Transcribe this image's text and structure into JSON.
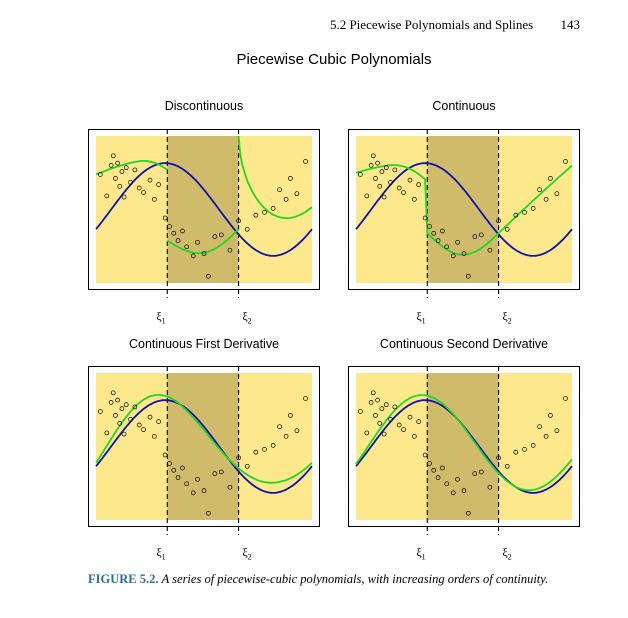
{
  "header": {
    "section": "5.2 Piecewise Polynomials and Splines",
    "page_number": "143"
  },
  "figure": {
    "title": "Piecewise Cubic Polynomials",
    "caption_label": "FIGURE 5.2.",
    "caption_text": "A series of piecewise-cubic polynomials, with increasing orders of continuity."
  },
  "colors": {
    "outer_region": "#fde98c",
    "middle_region": "#cfbb6a",
    "true_curve": "#1010b0",
    "fit_curve": "#22d622",
    "points": "#000000"
  },
  "chart_data": [
    {
      "type": "scatter",
      "title": "Discontinuous",
      "knots": [
        0.33,
        0.66
      ],
      "knot_labels": [
        "ξ1",
        "ξ2"
      ],
      "xlim": [
        0,
        1
      ],
      "ylim": [
        -1.3,
        1.3
      ],
      "fit_kind": "discontinuous"
    },
    {
      "type": "scatter",
      "title": "Continuous",
      "knots": [
        0.33,
        0.66
      ],
      "knot_labels": [
        "ξ1",
        "ξ2"
      ],
      "xlim": [
        0,
        1
      ],
      "ylim": [
        -1.3,
        1.3
      ],
      "fit_kind": "continuous"
    },
    {
      "type": "scatter",
      "title": "Continuous First Derivative",
      "knots": [
        0.33,
        0.66
      ],
      "knot_labels": [
        "ξ1",
        "ξ2"
      ],
      "xlim": [
        0,
        1
      ],
      "ylim": [
        -1.3,
        1.3
      ],
      "fit_kind": "first_derivative"
    },
    {
      "type": "scatter",
      "title": "Continuous Second Derivative",
      "knots": [
        0.33,
        0.66
      ],
      "knot_labels": [
        "ξ1",
        "ξ2"
      ],
      "xlim": [
        0,
        1
      ],
      "ylim": [
        -1.3,
        1.3
      ],
      "fit_kind": "second_derivative"
    }
  ],
  "points": {
    "x": [
      0.02,
      0.05,
      0.07,
      0.08,
      0.09,
      0.1,
      0.11,
      0.12,
      0.13,
      0.14,
      0.16,
      0.18,
      0.2,
      0.22,
      0.25,
      0.27,
      0.29,
      0.32,
      0.34,
      0.36,
      0.38,
      0.4,
      0.42,
      0.45,
      0.47,
      0.5,
      0.52,
      0.55,
      0.58,
      0.62,
      0.66,
      0.7,
      0.74,
      0.78,
      0.82,
      0.85,
      0.88,
      0.9,
      0.93,
      0.97
    ],
    "y": [
      0.62,
      0.24,
      0.78,
      0.95,
      0.55,
      0.82,
      0.41,
      0.67,
      0.22,
      0.74,
      0.48,
      0.7,
      0.38,
      0.3,
      0.52,
      0.18,
      0.44,
      -0.15,
      -0.3,
      -0.42,
      -0.55,
      -0.38,
      -0.66,
      -0.82,
      -0.58,
      -0.78,
      -1.18,
      -0.48,
      -0.45,
      -0.72,
      -0.2,
      -0.35,
      -0.1,
      -0.05,
      0.02,
      0.35,
      0.18,
      0.55,
      0.28,
      0.85
    ]
  }
}
